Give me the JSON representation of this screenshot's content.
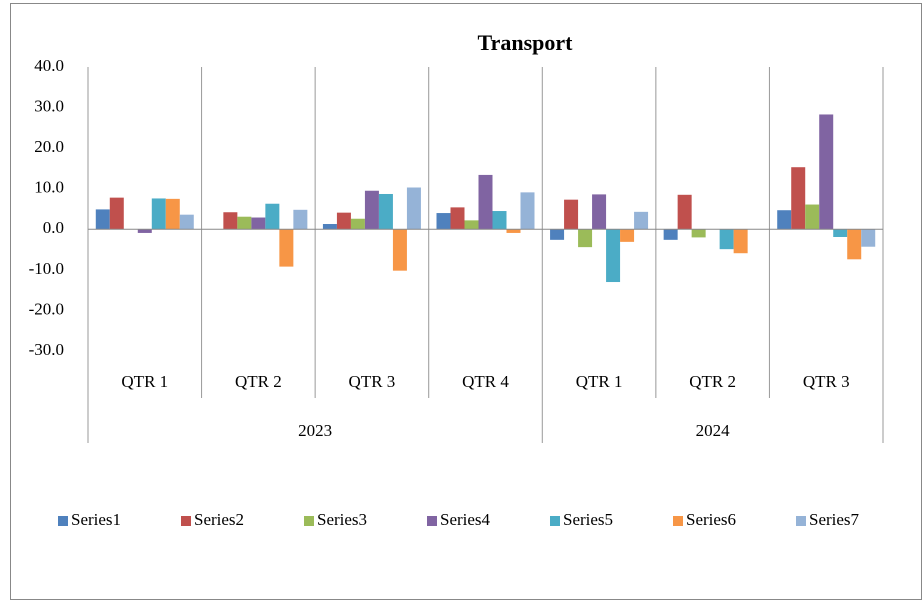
{
  "chart_data": {
    "type": "bar",
    "title": "Transport",
    "category_groups": [
      {
        "name": "2023",
        "categories": [
          "QTR 1",
          "QTR 2",
          "QTR 3",
          "QTR 4"
        ]
      },
      {
        "name": "2024",
        "categories": [
          "QTR 1",
          "QTR 2",
          "QTR 3"
        ]
      }
    ],
    "series": [
      {
        "name": "Series1",
        "color": "#4f81bd",
        "values": [
          4.9,
          0,
          1.3,
          4.0,
          -2.6,
          -2.6,
          4.7
        ]
      },
      {
        "name": "Series2",
        "color": "#c0504d",
        "values": [
          7.8,
          4.2,
          4.1,
          5.4,
          7.3,
          8.5,
          15.3
        ]
      },
      {
        "name": "Series3",
        "color": "#9bbb59",
        "values": [
          0,
          3.1,
          2.6,
          2.2,
          -4.4,
          -2.0,
          6.1
        ]
      },
      {
        "name": "Series4",
        "color": "#8064a2",
        "values": [
          -0.9,
          2.9,
          9.5,
          13.4,
          8.6,
          0,
          28.3
        ]
      },
      {
        "name": "Series5",
        "color": "#4bacc6",
        "values": [
          7.6,
          6.3,
          8.7,
          4.5,
          -13.0,
          -4.9,
          -1.9
        ]
      },
      {
        "name": "Series6",
        "color": "#f79646",
        "values": [
          7.5,
          -9.2,
          -10.2,
          -0.9,
          -3.1,
          -5.9,
          -7.4
        ]
      },
      {
        "name": "Series7",
        "color": "#95b3d7",
        "values": [
          3.6,
          4.8,
          10.3,
          9.1,
          4.3,
          0,
          -4.3
        ]
      }
    ],
    "ylim": [
      -30,
      40
    ],
    "yticks": [
      {
        "value": -30,
        "label": "-30.0"
      },
      {
        "value": -20,
        "label": "-20.0"
      },
      {
        "value": -10,
        "label": "-10.0"
      },
      {
        "value": 0,
        "label": "0.0"
      },
      {
        "value": 10,
        "label": "10.0"
      },
      {
        "value": 20,
        "label": "20.0"
      },
      {
        "value": 30,
        "label": "30.0"
      },
      {
        "value": 40,
        "label": "40.0"
      }
    ],
    "grid": false,
    "legend": "bottom"
  }
}
